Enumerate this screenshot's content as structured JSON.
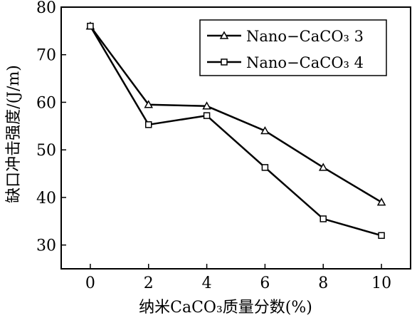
{
  "chart_data": {
    "type": "line",
    "x": [
      0,
      2,
      4,
      6,
      8,
      10
    ],
    "xlabel": "纳米CaCO₃质量分数(%)",
    "ylabel": "缺口冲击强度/(J/m)",
    "xlim": [
      -1,
      11
    ],
    "ylim": [
      25,
      80
    ],
    "xticks": [
      0,
      2,
      4,
      6,
      8,
      10
    ],
    "yticks": [
      30,
      40,
      50,
      60,
      70,
      80
    ],
    "grid": false,
    "legend_position": "top-right",
    "series": [
      {
        "name": "Nano−CaCO₃ 3",
        "marker": "triangle",
        "values": [
          76,
          59.5,
          59.2,
          54,
          46.3,
          39
        ]
      },
      {
        "name": "Nano−CaCO₃ 4",
        "marker": "square",
        "values": [
          76,
          55.3,
          57.2,
          46.3,
          35.5,
          32
        ]
      }
    ]
  }
}
